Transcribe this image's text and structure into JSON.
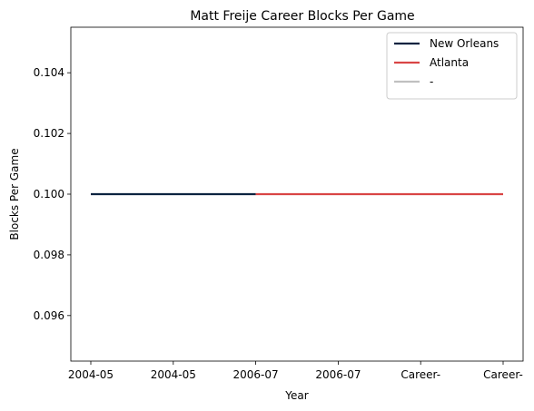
{
  "chart_data": {
    "type": "line",
    "title": "Matt Freije Career Blocks Per Game",
    "xlabel": "Year",
    "ylabel": "Blocks Per Game",
    "categories": [
      "2004-05",
      "2004-05",
      "2006-07",
      "2006-07",
      "Career-",
      "Career-"
    ],
    "ylim": [
      0.0945,
      0.1055
    ],
    "yticks": [
      {
        "value": 0.096,
        "label": "0.096"
      },
      {
        "value": 0.098,
        "label": "0.098"
      },
      {
        "value": 0.1,
        "label": "0.100"
      },
      {
        "value": 0.102,
        "label": "0.102"
      },
      {
        "value": 0.104,
        "label": "0.104"
      }
    ],
    "grid": false,
    "legend_position": "top-right",
    "series": [
      {
        "name": "New Orleans",
        "color": "#0c2340",
        "x": [
          0,
          1,
          2
        ],
        "values": [
          0.1,
          0.1,
          0.1
        ]
      },
      {
        "name": "Atlanta",
        "color": "#d94545",
        "x": [
          2,
          3,
          4,
          5
        ],
        "values": [
          0.1,
          0.1,
          0.1,
          0.1
        ]
      },
      {
        "name": "-",
        "color": "#c0c0c0",
        "x": [],
        "values": []
      }
    ]
  }
}
